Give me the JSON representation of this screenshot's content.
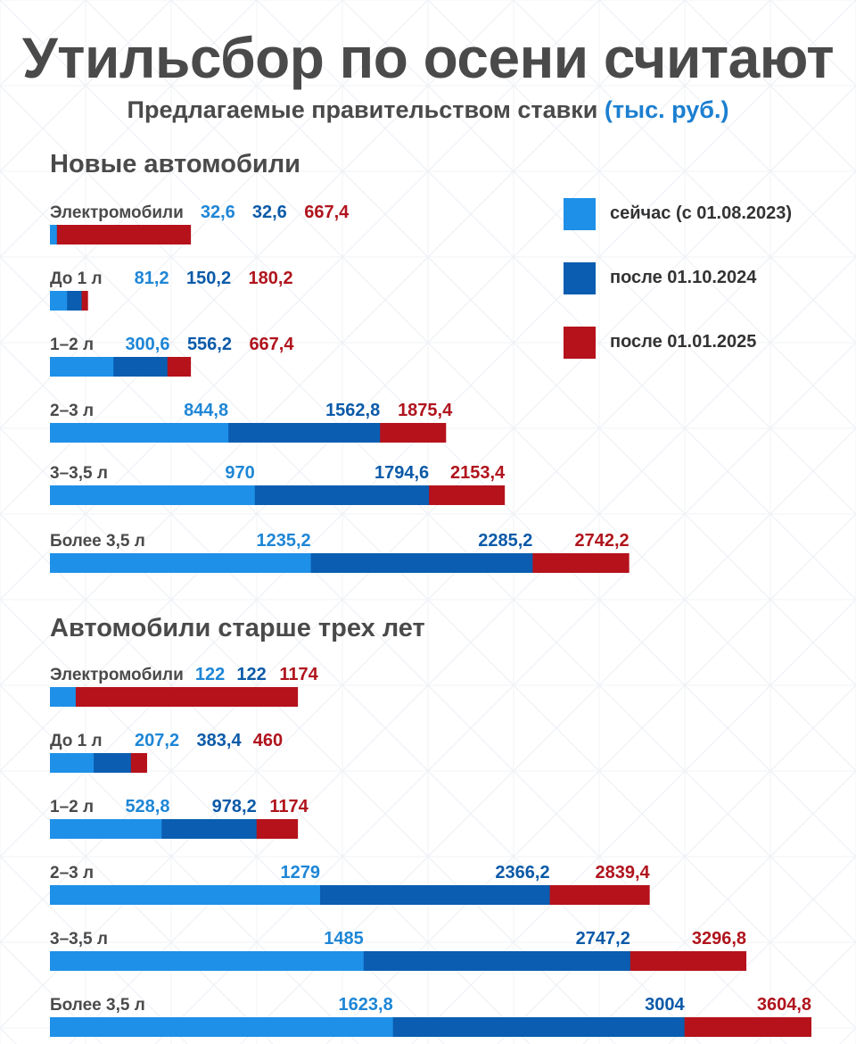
{
  "title": "Утильсбор по осени считают",
  "subtitle": {
    "text": "Предлагаемые правительством ставки",
    "unit": "(тыс. руб.)"
  },
  "colors": {
    "now": "#1e90e8",
    "oct2024": "#0a5db0",
    "jan2025": "#b5121b",
    "label_now": "#1e86d6",
    "label_oct2024": "#0b5aa8",
    "label_jan2025": "#b0141d",
    "text": "#4a4a4a"
  },
  "legend": [
    {
      "key": "now",
      "label": "сейчас (с 01.08.2023)"
    },
    {
      "key": "oct2024",
      "label": "после 01.10.2024"
    },
    {
      "key": "jan2025",
      "label": "после 01.01.2025"
    }
  ],
  "chart_data": [
    {
      "type": "bar",
      "title": "Новые автомобили",
      "categories": [
        "Электромобили",
        "До 1 л",
        "1–2 л",
        "2–3 л",
        "3–3,5 л",
        "Более 3,5 л"
      ],
      "series": [
        {
          "name": "сейчас (с 01.08.2023)",
          "values": [
            32.6,
            81.2,
            300.6,
            844.8,
            970,
            1235.2
          ],
          "labels": [
            "32,6",
            "81,2",
            "300,6",
            "844,8",
            "970",
            "1235,2"
          ]
        },
        {
          "name": "после 01.10.2024",
          "values": [
            32.6,
            150.2,
            556.2,
            1562.8,
            1794.6,
            2285.2
          ],
          "labels": [
            "32,6",
            "150,2",
            "556,2",
            "1562,8",
            "1794,6",
            "2285,2"
          ]
        },
        {
          "name": "после 01.01.2025",
          "values": [
            667.4,
            180.2,
            667.4,
            1875.4,
            2153.4,
            2742.2
          ],
          "labels": [
            "667,4",
            "180,2",
            "667,4",
            "1875,4",
            "2153,4",
            "2742,2"
          ]
        }
      ]
    },
    {
      "type": "bar",
      "title": "Автомобили старше трех лет",
      "categories": [
        "Электромобили",
        "До 1 л",
        "1–2 л",
        "2–3 л",
        "3–3,5 л",
        "Более 3,5 л"
      ],
      "series": [
        {
          "name": "сейчас (с 01.08.2023)",
          "values": [
            122,
            207.2,
            528.8,
            1279,
            1485,
            1623.8
          ],
          "labels": [
            "122",
            "207,2",
            "528,8",
            "1279",
            "1485",
            "1623,8"
          ]
        },
        {
          "name": "после 01.10.2024",
          "values": [
            122,
            383.4,
            978.2,
            2366.2,
            2747.2,
            3004
          ],
          "labels": [
            "122",
            "383,4",
            "978,2",
            "2366,2",
            "2747,2",
            "3004"
          ]
        },
        {
          "name": "после 01.01.2025",
          "values": [
            1174,
            460,
            1174,
            2839.4,
            3296.8,
            3604.8
          ],
          "labels": [
            "1174",
            "460",
            "1174",
            "2839,4",
            "3296,8",
            "3604,8"
          ]
        }
      ]
    }
  ]
}
